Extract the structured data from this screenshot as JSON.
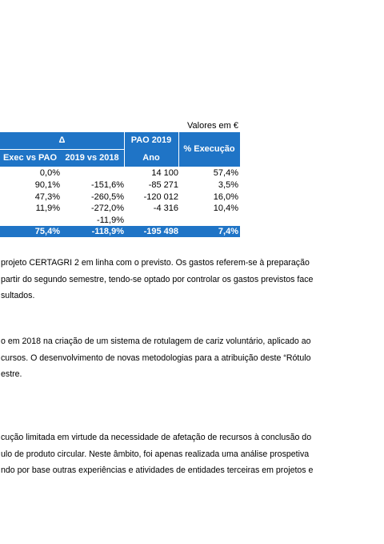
{
  "table": {
    "unit_note": "Valores em €",
    "header": {
      "delta": "Δ",
      "exec_vs_pao": "Exec vs PAO",
      "y2019_vs_2018": "2019 vs 2018",
      "pao_2019": "PAO 2019",
      "ano": "Ano",
      "execucao": "% Execução"
    },
    "rows": [
      [
        "0,0%",
        null,
        "14 100",
        "57,4%"
      ],
      [
        "90,1%",
        "-151,6%",
        "-85 271",
        "3,5%"
      ],
      [
        "47,3%",
        "-260,5%",
        "-120 012",
        "16,0%"
      ],
      [
        "11,9%",
        "-272,0%",
        "-4 316",
        "10,4%"
      ],
      [
        null,
        "-11,9%",
        null,
        null
      ]
    ],
    "total": [
      "75,4%",
      "-118,9%",
      "-195 498",
      "7,4%"
    ]
  },
  "paragraphs": [
    [
      "projeto CERTAGRI 2 em linha com o previsto. Os gastos referem-se à preparação",
      "partir do segundo semestre, tendo-se optado por controlar os gastos previstos face",
      "sultados."
    ],
    [
      "o em 2018 na criação de um sistema de rotulagem de cariz voluntário, aplicado ao",
      "cursos. O desenvolvimento de novas metodologias para a atribuição deste “Rótulo",
      "estre."
    ],
    [
      "cução limitada em virtude da necessidade de afetação de recursos à conclusão do",
      "ulo de produto circular. Neste âmbito, foi apenas realizada uma análise prospetiva",
      "ndo por base outras experiências e atividades de entidades terceiras em projetos e"
    ]
  ]
}
